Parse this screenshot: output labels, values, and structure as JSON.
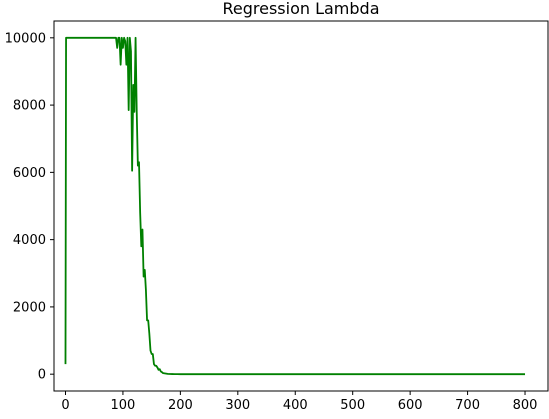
{
  "chart_data": {
    "type": "line",
    "title": "Regression Lambda",
    "xlabel": "",
    "ylabel": "",
    "xlim": [
      -20,
      840
    ],
    "ylim": [
      -500,
      10500
    ],
    "x_ticks": [
      0,
      100,
      200,
      300,
      400,
      500,
      600,
      700,
      800
    ],
    "y_ticks": [
      0,
      2000,
      4000,
      6000,
      8000,
      10000
    ],
    "grid": false,
    "legend": "none",
    "series": [
      {
        "color": "#008000",
        "x": [
          0,
          1,
          2,
          20,
          40,
          60,
          80,
          88,
          90,
          92,
          94,
          96,
          98,
          100,
          102,
          104,
          106,
          108,
          110,
          112,
          114,
          116,
          118,
          120,
          122,
          124,
          126,
          128,
          130,
          132,
          134,
          136,
          138,
          140,
          142,
          144,
          146,
          148,
          150,
          152,
          154,
          156,
          158,
          160,
          162,
          164,
          166,
          168,
          170,
          174,
          178,
          182,
          186,
          190,
          195,
          200,
          250,
          300,
          400,
          500,
          600,
          700,
          800
        ],
        "y": [
          300,
          10000,
          10000,
          10000,
          10000,
          10000,
          10000,
          10000,
          9700,
          10000,
          10000,
          9200,
          10000,
          9700,
          10000,
          9900,
          9200,
          10000,
          7850,
          10000,
          9600,
          6050,
          8600,
          7800,
          10000,
          7800,
          6200,
          6300,
          4800,
          3800,
          4300,
          2900,
          3100,
          2500,
          1600,
          1600,
          1200,
          700,
          600,
          600,
          300,
          250,
          250,
          200,
          130,
          150,
          80,
          60,
          30,
          20,
          10,
          5,
          3,
          2,
          1,
          0,
          0,
          0,
          0,
          0,
          0,
          0,
          0
        ]
      }
    ]
  }
}
